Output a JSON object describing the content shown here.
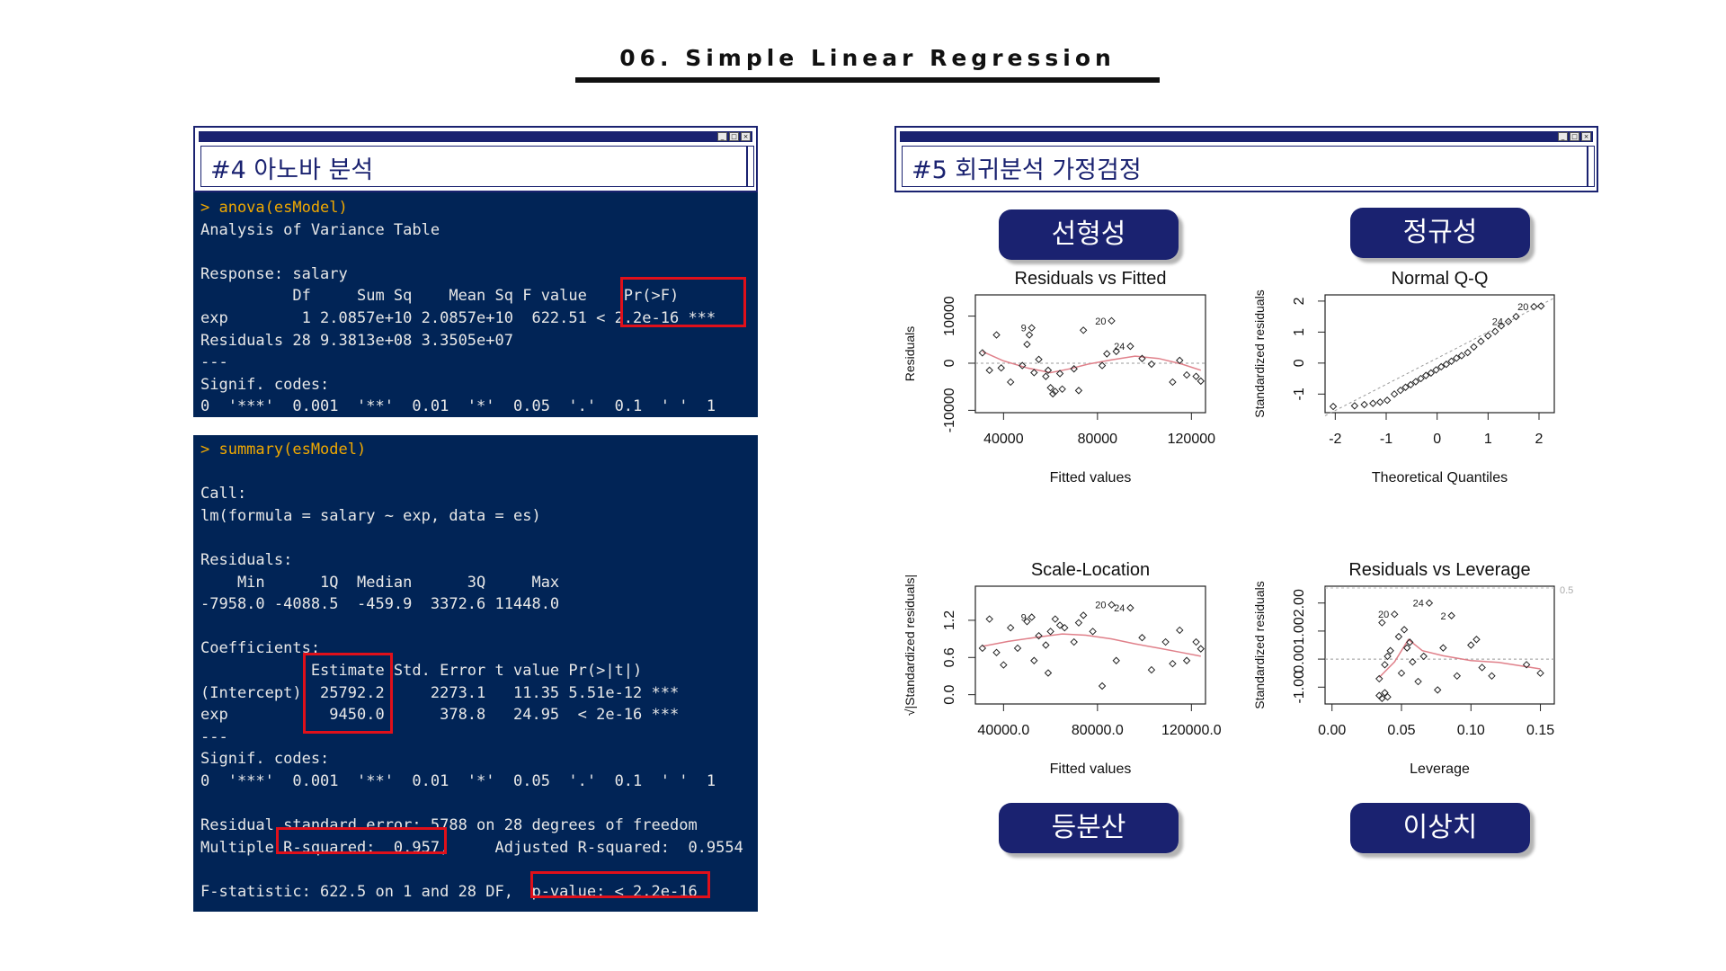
{
  "page_title": "06. Simple Linear Regression",
  "panels": {
    "anova_title": "#4 아노바 분석",
    "assumption_title": "#5 회귀분석 가정검정"
  },
  "anova_console": [
    "> anova(esModel)",
    "Analysis of Variance Table",
    "",
    "Response: salary",
    "          Df     Sum Sq    Mean Sq F value    Pr(>F)",
    "exp        1 2.0857e+10 2.0857e+10  622.51 < 2.2e-16 ***",
    "Residuals 28 9.3813e+08 3.3505e+07",
    "---",
    "Signif. codes:",
    "0  '***'  0.001  '**'  0.01  '*'  0.05  '.'  0.1  ' '  1"
  ],
  "summary_console": [
    "> summary(esModel)",
    "",
    "Call:",
    "lm(formula = salary ~ exp, data = es)",
    "",
    "Residuals:",
    "    Min      1Q  Median      3Q     Max",
    "-7958.0 -4088.5  -459.9  3372.6 11448.0",
    "",
    "Coefficients:",
    "            Estimate Std. Error t value Pr(>|t|)",
    "(Intercept)  25792.2     2273.1   11.35 5.51e-12 ***",
    "exp           9450.0      378.8   24.95  < 2e-16 ***",
    "---",
    "Signif. codes:",
    "0  '***'  0.001  '**'  0.01  '*'  0.05  '.'  0.1  ' '  1",
    "",
    "Residual standard error: 5788 on 28 degrees of freedom",
    "Multiple R-squared:  0.957,     Adjusted R-squared:  0.9554",
    "",
    "F-statistic: 622.5 on 1 and 28 DF,  p-value: < 2.2e-16"
  ],
  "labels": {
    "linearity": "선형성",
    "normality": "정규성",
    "homoscedasticity": "등분산",
    "outliers": "이상치"
  },
  "colors": {
    "navy": "#1a2270",
    "console_bg": "#012456",
    "command": "#f0a800",
    "highlight": "#e0101a",
    "smooth_line": "#e0808a"
  },
  "chart_data": [
    {
      "type": "scatter",
      "title": "Residuals vs Fitted",
      "xlabel": "Fitted values",
      "ylabel": "Residuals",
      "xlim": [
        28000,
        126000
      ],
      "ylim": [
        -10500,
        14500
      ],
      "xticks": [
        40000,
        80000,
        120000
      ],
      "yticks": [
        -10000,
        0,
        10000
      ],
      "refline": 0,
      "points": [
        [
          31000,
          2200
        ],
        [
          34000,
          -1500
        ],
        [
          37000,
          6000
        ],
        [
          39000,
          -1000
        ],
        [
          43000,
          -4000
        ],
        [
          48000,
          -500
        ],
        [
          50000,
          4000
        ],
        [
          51000,
          6000
        ],
        [
          52000,
          7500
        ],
        [
          53000,
          -2000
        ],
        [
          55000,
          800
        ],
        [
          58000,
          -2800
        ],
        [
          59000,
          -1500
        ],
        [
          60000,
          -5200
        ],
        [
          61000,
          -6500
        ],
        [
          62000,
          -6000
        ],
        [
          64000,
          -2200
        ],
        [
          65000,
          -5500
        ],
        [
          70000,
          -1200
        ],
        [
          72000,
          -5800
        ],
        [
          74000,
          7000
        ],
        [
          82000,
          -500
        ],
        [
          84000,
          2000
        ],
        [
          86000,
          9000
        ],
        [
          88000,
          2500
        ],
        [
          94000,
          3600
        ],
        [
          99000,
          1000
        ],
        [
          103000,
          -200
        ],
        [
          112000,
          -4000
        ],
        [
          115000,
          600
        ],
        [
          118000,
          -2500
        ],
        [
          122000,
          -2800
        ],
        [
          124000,
          -3800
        ]
      ],
      "smooth": [
        [
          31000,
          2500
        ],
        [
          40000,
          500
        ],
        [
          50000,
          -1000
        ],
        [
          60000,
          -2000
        ],
        [
          68000,
          -1200
        ],
        [
          76000,
          -200
        ],
        [
          86000,
          700
        ],
        [
          96000,
          1500
        ],
        [
          106000,
          1000
        ],
        [
          116000,
          -200
        ],
        [
          124000,
          -1500
        ]
      ],
      "annotations": [
        {
          "x": 52000,
          "y": 7500,
          "label": "9"
        },
        {
          "x": 86000,
          "y": 9000,
          "label": "20"
        },
        {
          "x": 94000,
          "y": 3600,
          "label": "24"
        }
      ]
    },
    {
      "type": "scatter",
      "title": "Normal Q-Q",
      "xlabel": "Theoretical Quantiles",
      "ylabel": "Standardized residuals",
      "xlim": [
        -2.2,
        2.3
      ],
      "ylim": [
        -1.6,
        2.2
      ],
      "xticks": [
        -2,
        -1,
        0,
        1,
        2
      ],
      "yticks": [
        -1,
        0,
        1,
        2
      ],
      "refline_diag": [
        [
          -2.2,
          -1.7
        ],
        [
          2.3,
          2.1
        ]
      ],
      "points": [
        [
          -2.04,
          -1.4
        ],
        [
          -1.62,
          -1.38
        ],
        [
          -1.43,
          -1.34
        ],
        [
          -1.26,
          -1.3
        ],
        [
          -1.12,
          -1.26
        ],
        [
          -0.98,
          -1.2
        ],
        [
          -0.84,
          -1.0
        ],
        [
          -0.72,
          -0.88
        ],
        [
          -0.62,
          -0.78
        ],
        [
          -0.52,
          -0.7
        ],
        [
          -0.42,
          -0.6
        ],
        [
          -0.32,
          -0.5
        ],
        [
          -0.22,
          -0.4
        ],
        [
          -0.12,
          -0.32
        ],
        [
          -0.02,
          -0.22
        ],
        [
          0.08,
          -0.12
        ],
        [
          0.18,
          -0.04
        ],
        [
          0.28,
          0.06
        ],
        [
          0.38,
          0.16
        ],
        [
          0.48,
          0.24
        ],
        [
          0.6,
          0.34
        ],
        [
          0.72,
          0.52
        ],
        [
          0.86,
          0.7
        ],
        [
          1.0,
          0.88
        ],
        [
          1.14,
          1.02
        ],
        [
          1.26,
          1.2
        ],
        [
          1.4,
          1.34
        ],
        [
          1.55,
          1.5
        ],
        [
          1.9,
          1.82
        ],
        [
          2.04,
          1.84
        ]
      ],
      "annotations": [
        {
          "x": 1.4,
          "y": 1.34,
          "label": "24"
        },
        {
          "x": 1.9,
          "y": 1.82,
          "label": "20"
        }
      ]
    },
    {
      "type": "scatter",
      "title": "Scale-Location",
      "xlabel": "Fitted values",
      "ylabel": "√|Standardized residuals|",
      "xlim": [
        28000,
        126000
      ],
      "ylim": [
        -0.15,
        1.75
      ],
      "xticks": [
        40000,
        80000,
        120000
      ],
      "yticks": [
        0.0,
        0.6,
        1.2
      ],
      "points": [
        [
          31000,
          0.75
        ],
        [
          34000,
          1.22
        ],
        [
          37000,
          0.68
        ],
        [
          40000,
          0.48
        ],
        [
          43000,
          1.08
        ],
        [
          46000,
          0.75
        ],
        [
          50000,
          1.18
        ],
        [
          52000,
          1.25
        ],
        [
          53000,
          0.55
        ],
        [
          55000,
          0.95
        ],
        [
          58000,
          0.8
        ],
        [
          59000,
          0.35
        ],
        [
          60000,
          1.02
        ],
        [
          62000,
          1.22
        ],
        [
          64000,
          1.12
        ],
        [
          66000,
          1.08
        ],
        [
          70000,
          0.85
        ],
        [
          72000,
          1.16
        ],
        [
          74000,
          1.28
        ],
        [
          78000,
          1.02
        ],
        [
          82000,
          0.14
        ],
        [
          86000,
          1.45
        ],
        [
          88000,
          0.55
        ],
        [
          94000,
          1.4
        ],
        [
          99000,
          0.92
        ],
        [
          103000,
          0.4
        ],
        [
          109000,
          0.85
        ],
        [
          112000,
          0.5
        ],
        [
          115000,
          1.04
        ],
        [
          118000,
          0.55
        ],
        [
          122000,
          0.85
        ],
        [
          124000,
          0.74
        ]
      ],
      "smooth": [
        [
          31000,
          0.78
        ],
        [
          42000,
          0.86
        ],
        [
          55000,
          0.93
        ],
        [
          65000,
          0.98
        ],
        [
          75000,
          0.96
        ],
        [
          86000,
          0.9
        ],
        [
          96000,
          0.82
        ],
        [
          106000,
          0.75
        ],
        [
          116000,
          0.68
        ],
        [
          124000,
          0.62
        ]
      ],
      "annotations": [
        {
          "x": 52000,
          "y": 1.25,
          "label": "9"
        },
        {
          "x": 86000,
          "y": 1.45,
          "label": "20"
        },
        {
          "x": 94000,
          "y": 1.4,
          "label": "24"
        }
      ]
    },
    {
      "type": "scatter",
      "title": "Residuals vs Leverage",
      "xlabel": "Leverage",
      "ylabel": "Standardized residuals",
      "xlim": [
        -0.005,
        0.16
      ],
      "ylim": [
        -1.6,
        2.6
      ],
      "xticks": [
        0.0,
        0.05,
        0.1,
        0.15
      ],
      "yticks": [
        -1,
        0,
        1,
        2
      ],
      "refline": 0,
      "cooks_label": "0.5",
      "points": [
        [
          0.034,
          -1.3
        ],
        [
          0.036,
          -1.4
        ],
        [
          0.038,
          -1.2
        ],
        [
          0.04,
          -1.35
        ],
        [
          0.034,
          -0.7
        ],
        [
          0.036,
          1.3
        ],
        [
          0.038,
          -0.2
        ],
        [
          0.04,
          0.1
        ],
        [
          0.042,
          0.3
        ],
        [
          0.045,
          1.6
        ],
        [
          0.048,
          0.8
        ],
        [
          0.05,
          -0.5
        ],
        [
          0.052,
          1.05
        ],
        [
          0.054,
          0.4
        ],
        [
          0.056,
          0.6
        ],
        [
          0.058,
          -0.1
        ],
        [
          0.062,
          -0.8
        ],
        [
          0.066,
          0.1
        ],
        [
          0.07,
          2.0
        ],
        [
          0.076,
          -1.1
        ],
        [
          0.08,
          0.4
        ],
        [
          0.086,
          1.55
        ],
        [
          0.09,
          -0.6
        ],
        [
          0.1,
          0.5
        ],
        [
          0.104,
          0.7
        ],
        [
          0.108,
          -0.3
        ],
        [
          0.115,
          -0.6
        ],
        [
          0.14,
          -0.2
        ],
        [
          0.15,
          -0.5
        ]
      ],
      "smooth": [
        [
          0.034,
          -0.65
        ],
        [
          0.045,
          -0.1
        ],
        [
          0.055,
          0.7
        ],
        [
          0.065,
          0.3
        ],
        [
          0.08,
          0.12
        ],
        [
          0.1,
          -0.05
        ],
        [
          0.12,
          -0.12
        ],
        [
          0.15,
          -0.35
        ]
      ],
      "annotations": [
        {
          "x": 0.045,
          "y": 1.6,
          "label": "20"
        },
        {
          "x": 0.07,
          "y": 2.0,
          "label": "24"
        },
        {
          "x": 0.086,
          "y": 1.55,
          "label": "2"
        }
      ]
    }
  ]
}
